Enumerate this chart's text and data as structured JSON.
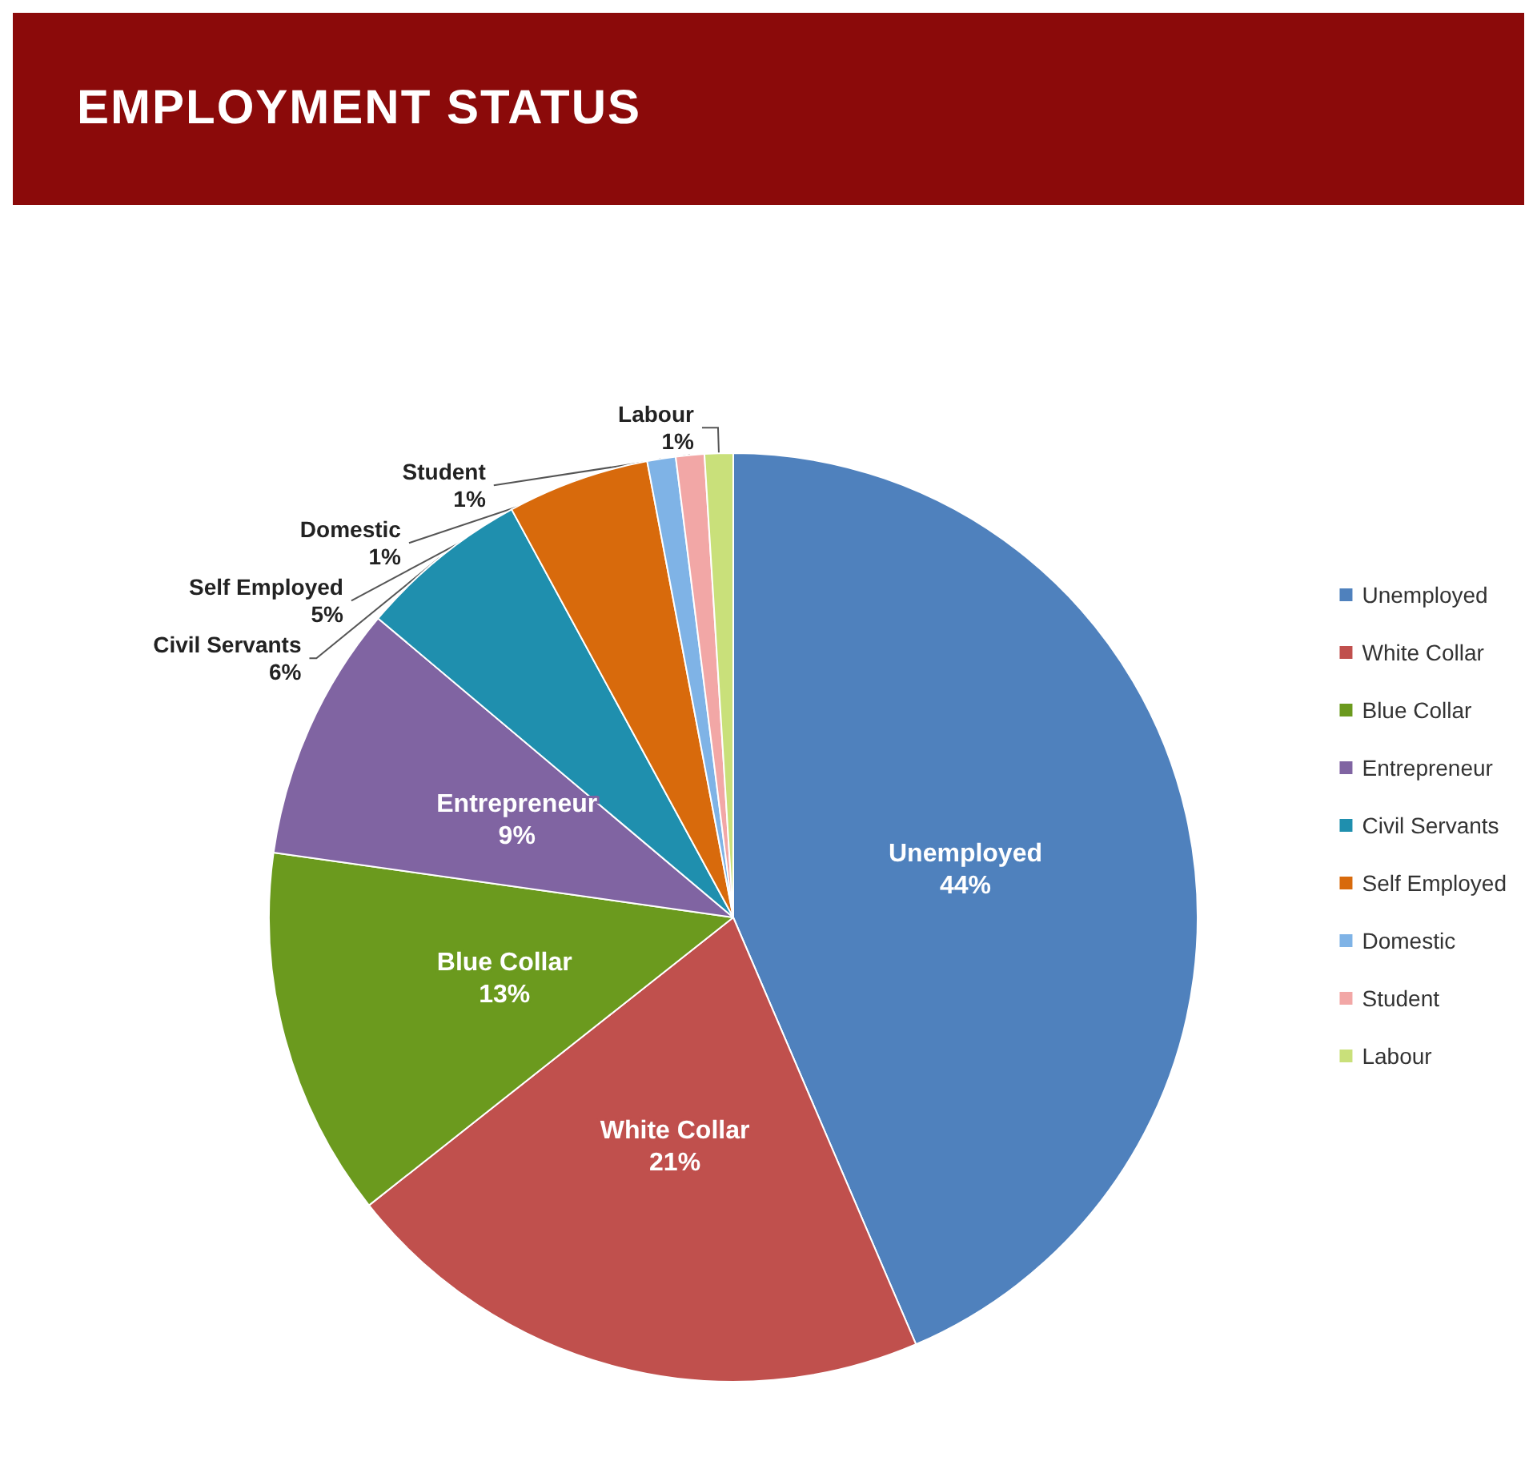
{
  "chart_data": {
    "type": "pie",
    "title": "EMPLOYMENT STATUS",
    "categories": [
      "Unemployed",
      "White Collar",
      "Blue Collar",
      "Entrepreneur",
      "Civil Servants",
      "Self Employed",
      "Domestic",
      "Student",
      "Labour"
    ],
    "values": [
      44,
      21,
      13,
      9,
      6,
      5,
      1,
      1,
      1
    ],
    "value_labels": [
      "44%",
      "21%",
      "13%",
      "9%",
      "6%",
      "5%",
      "1%",
      "1%",
      "1%"
    ],
    "colors": [
      "#4f81bd",
      "#c0504d",
      "#6b9a1e",
      "#8064a2",
      "#1f8fae",
      "#d86a0c",
      "#7fb3e6",
      "#f2a7a6",
      "#c9e07a"
    ],
    "legend": "right"
  }
}
